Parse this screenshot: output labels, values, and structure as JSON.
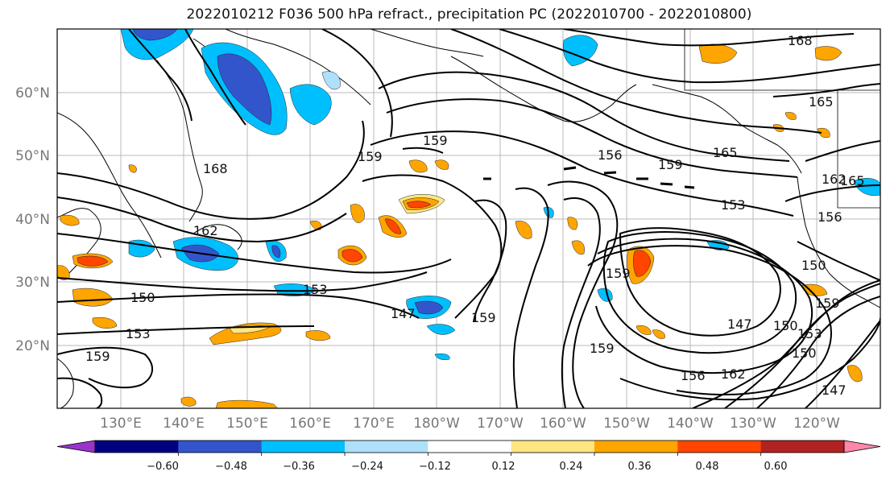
{
  "title": "2022010212 F036 500 hPa refract., precipitation PC (2022010700 - 2022010800)",
  "map": {
    "lon_labels": [
      "130°E",
      "140°E",
      "150°E",
      "160°E",
      "170°E",
      "180°W",
      "170°W",
      "160°W",
      "150°W",
      "140°W",
      "130°W",
      "120°W"
    ],
    "lat_labels": [
      "20°N",
      "30°N",
      "40°N",
      "50°N",
      "60°N"
    ],
    "contour_labels": [
      {
        "id": "c1",
        "text": "168"
      },
      {
        "id": "c2",
        "text": "165"
      },
      {
        "id": "c3",
        "text": "165"
      },
      {
        "id": "c4",
        "text": "162"
      },
      {
        "id": "c5",
        "text": "159"
      },
      {
        "id": "c6",
        "text": "159"
      },
      {
        "id": "c7",
        "text": "156"
      },
      {
        "id": "c8",
        "text": "153"
      },
      {
        "id": "c9",
        "text": "150"
      },
      {
        "id": "c10",
        "text": "153"
      },
      {
        "id": "c11",
        "text": "147"
      },
      {
        "id": "c12",
        "text": "159"
      },
      {
        "id": "c13",
        "text": "150"
      },
      {
        "id": "c14",
        "text": "153"
      },
      {
        "id": "c15",
        "text": "159"
      },
      {
        "id": "c16",
        "text": "162"
      },
      {
        "id": "c17",
        "text": "168"
      },
      {
        "id": "c18",
        "text": "159"
      },
      {
        "id": "c19",
        "text": "159"
      },
      {
        "id": "c20",
        "text": "147"
      },
      {
        "id": "c21",
        "text": "150"
      },
      {
        "id": "c22",
        "text": "156"
      },
      {
        "id": "c23",
        "text": "159"
      },
      {
        "id": "c24",
        "text": "153"
      },
      {
        "id": "c25",
        "text": "150"
      },
      {
        "id": "c26",
        "text": "147"
      },
      {
        "id": "c27",
        "text": "156"
      },
      {
        "id": "c28",
        "text": "162"
      },
      {
        "id": "c29",
        "text": "165"
      },
      {
        "id": "c30",
        "text": "159"
      }
    ]
  },
  "colorbar": {
    "labels": [
      "−0.60",
      "−0.48",
      "−0.36",
      "−0.24",
      "−0.12",
      "0.12",
      "0.24",
      "0.36",
      "0.48",
      "0.60"
    ],
    "colors": [
      "#9933cc",
      "#000080",
      "#3355cc",
      "#00bfff",
      "#aee0fb",
      "#ffffff",
      "#ffe680",
      "#ffa500",
      "#ff4500",
      "#b22222",
      "#ff88aa"
    ]
  }
}
